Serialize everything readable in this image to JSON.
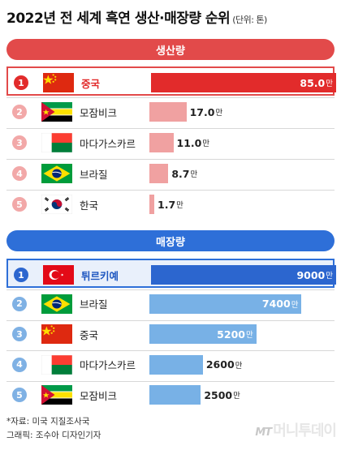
{
  "title": "2022년 전 세계 흑연 생산·매장량 순위",
  "unit": "(단위: 톤)",
  "colors": {
    "production_header": "#e24a4a",
    "production_top_bar": "#e22b2b",
    "production_bar": "#f0a1a1",
    "production_badge": "#e22b2b",
    "production_badge_light": "#f2a8a8",
    "reserve_header": "#2e6fd8",
    "reserve_top_bar": "#2c66cf",
    "reserve_bar": "#78b1e6",
    "reserve_badge": "#2c66cf",
    "reserve_badge_light": "#7fb1e4"
  },
  "chart_data": [
    {
      "type": "bar",
      "title": "생산량",
      "categories": [
        "중국",
        "모잠비크",
        "마다가스카르",
        "브라질",
        "한국"
      ],
      "values": [
        85.0,
        17.0,
        11.0,
        8.7,
        1.7
      ],
      "value_labels": [
        "85.0",
        "17.0",
        "11.0",
        "8.7",
        "1.7"
      ],
      "value_suffix": "만",
      "ranks": [
        "1",
        "2",
        "3",
        "4",
        "5"
      ],
      "flags": [
        "china-flag-icon",
        "mozambique-flag-icon",
        "madagascar-flag-icon",
        "brazil-flag-icon",
        "korea-flag-icon"
      ]
    },
    {
      "type": "bar",
      "title": "매장량",
      "categories": [
        "튀르키예",
        "브라질",
        "중국",
        "마다가스카르",
        "모잠비크"
      ],
      "values": [
        9000,
        7400,
        5200,
        2600,
        2500
      ],
      "value_labels": [
        "9000",
        "7400",
        "5200",
        "2600",
        "2500"
      ],
      "value_suffix": "만",
      "ranks": [
        "1",
        "2",
        "3",
        "4",
        "5"
      ],
      "flags": [
        "turkey-flag-icon",
        "brazil-flag-icon",
        "china-flag-icon",
        "madagascar-flag-icon",
        "mozambique-flag-icon"
      ]
    }
  ],
  "footer": {
    "source": "*자료: 미국 지질조사국",
    "credit": "그래픽: 조수아 디자인기자",
    "logo_mt": "MT",
    "logo_text": "머니투데이"
  }
}
